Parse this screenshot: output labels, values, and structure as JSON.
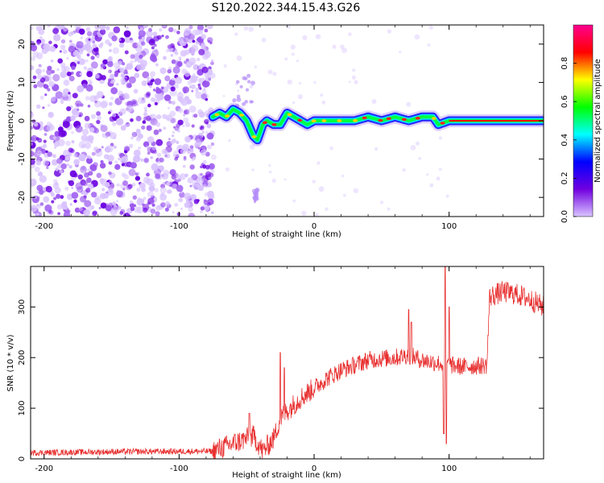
{
  "title": "S120.2022.344.15.43.G26",
  "chart_data": [
    {
      "type": "heatmap",
      "xlabel": "Height of straight line (km)",
      "ylabel": "Frequency (Hz)",
      "xlim": [
        -210,
        170
      ],
      "ylim": [
        -25,
        25
      ],
      "xticks": [
        "-200",
        "-100",
        "0",
        "100"
      ],
      "yticks": [
        "20",
        "10",
        "0",
        "-10",
        "-20"
      ],
      "colorbar": {
        "label": "Normalized spectral amplitude",
        "range": [
          0,
          1
        ],
        "ticks": [
          "0.0",
          "0.2",
          "0.4",
          "0.6",
          "0.8"
        ],
        "colormap": [
          "#d9c4ff",
          "#7000e0",
          "#0000ff",
          "#00ffff",
          "#00ff00",
          "#ffff00",
          "#ff0000",
          "#ff0090"
        ]
      },
      "noise_region_x": [
        -210,
        -75
      ],
      "ridge": {
        "x": [
          -75,
          -70,
          -65,
          -60,
          -55,
          -50,
          -45,
          -42,
          -40,
          -38,
          -35,
          -30,
          -25,
          -20,
          -15,
          -10,
          -5,
          0,
          10,
          20,
          30,
          40,
          50,
          60,
          70,
          80,
          88,
          92,
          100,
          170
        ],
        "y": [
          1,
          2,
          1,
          3,
          2,
          0,
          -4,
          -5,
          -3,
          -1,
          0,
          -1,
          -1,
          2,
          1,
          0,
          -1,
          0,
          0,
          0,
          0,
          1,
          0,
          1,
          0,
          1,
          1,
          -1,
          0,
          0
        ]
      },
      "secondary_artifacts": [
        {
          "x_range": [
            -60,
            -45
          ],
          "y_range": [
            3,
            12
          ]
        },
        {
          "x_range": [
            -45,
            -42
          ],
          "y_range": [
            -22,
            -18
          ]
        }
      ]
    },
    {
      "type": "line",
      "xlabel": "Height of straight line (km)",
      "ylabel": "SNR (10 * v/v)",
      "xlim": [
        -210,
        170
      ],
      "ylim": [
        0,
        380
      ],
      "xticks": [
        "-200",
        "-100",
        "0",
        "100"
      ],
      "yticks": [
        "0",
        "100",
        "200",
        "300"
      ],
      "color": "#e83030",
      "trend": {
        "x": [
          -210,
          -150,
          -75,
          -65,
          -55,
          -45,
          -38,
          -30,
          -25,
          -20,
          -10,
          0,
          10,
          20,
          30,
          40,
          50,
          60,
          70,
          80,
          90,
          100,
          110,
          128,
          130,
          140,
          150,
          160,
          170
        ],
        "y": [
          12,
          14,
          15,
          25,
          35,
          45,
          15,
          40,
          80,
          95,
          120,
          140,
          160,
          175,
          185,
          195,
          198,
          200,
          205,
          195,
          190,
          185,
          182,
          185,
          320,
          330,
          325,
          315,
          300
        ]
      },
      "spikes": [
        {
          "x": -48,
          "y": 90
        },
        {
          "x": -25,
          "y": 210
        },
        {
          "x": -22,
          "y": 180
        },
        {
          "x": 70,
          "y": 295
        },
        {
          "x": 72,
          "y": 270
        },
        {
          "x": 97,
          "y": 380
        },
        {
          "x": 98,
          "y": 30
        },
        {
          "x": 100,
          "y": 300
        },
        {
          "x": 96,
          "y": 50
        }
      ]
    }
  ]
}
